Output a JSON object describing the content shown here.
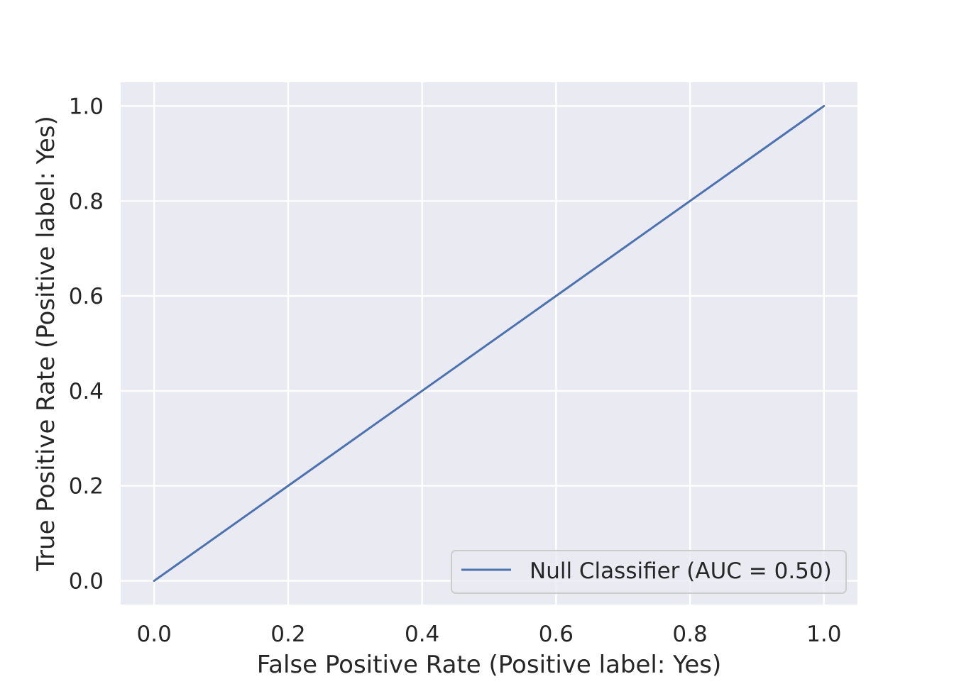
{
  "chart_data": {
    "type": "line",
    "title": "",
    "xlabel": "False Positive Rate (Positive label: Yes)",
    "ylabel": "True Positive Rate (Positive label: Yes)",
    "xlim": [
      -0.05,
      1.05
    ],
    "ylim": [
      -0.05,
      1.05
    ],
    "xticks": [
      "0.0",
      "0.2",
      "0.4",
      "0.6",
      "0.8",
      "1.0"
    ],
    "yticks": [
      "0.0",
      "0.2",
      "0.4",
      "0.6",
      "0.8",
      "1.0"
    ],
    "grid": true,
    "legend_position": "lower-right",
    "series": [
      {
        "name": "Null Classifier (AUC = 0.50)",
        "color": "#4c72b0",
        "x": [
          0.0,
          1.0
        ],
        "y": [
          0.0,
          1.0
        ]
      }
    ]
  },
  "colors": {
    "plot_background": "#eaeaf2",
    "grid": "#ffffff",
    "text": "#262626"
  }
}
